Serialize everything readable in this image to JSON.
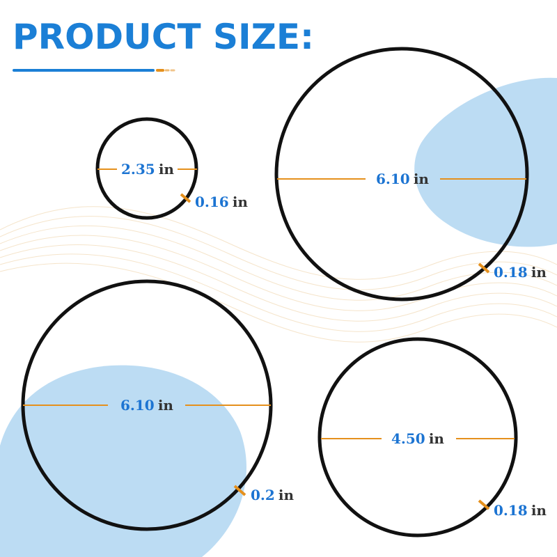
{
  "header": {
    "title": "PRODUCT SIZE:"
  },
  "rings": [
    {
      "diameter": {
        "value": "2.35",
        "unit": "in"
      },
      "thickness": {
        "value": "0.16",
        "unit": "in"
      }
    },
    {
      "diameter": {
        "value": "6.10",
        "unit": "in"
      },
      "thickness": {
        "value": "0.18",
        "unit": "in"
      }
    },
    {
      "diameter": {
        "value": "6.10",
        "unit": "in"
      },
      "thickness": {
        "value": "0.2",
        "unit": "in"
      }
    },
    {
      "diameter": {
        "value": "4.50",
        "unit": "in"
      },
      "thickness": {
        "value": "0.18",
        "unit": "in"
      }
    }
  ]
}
